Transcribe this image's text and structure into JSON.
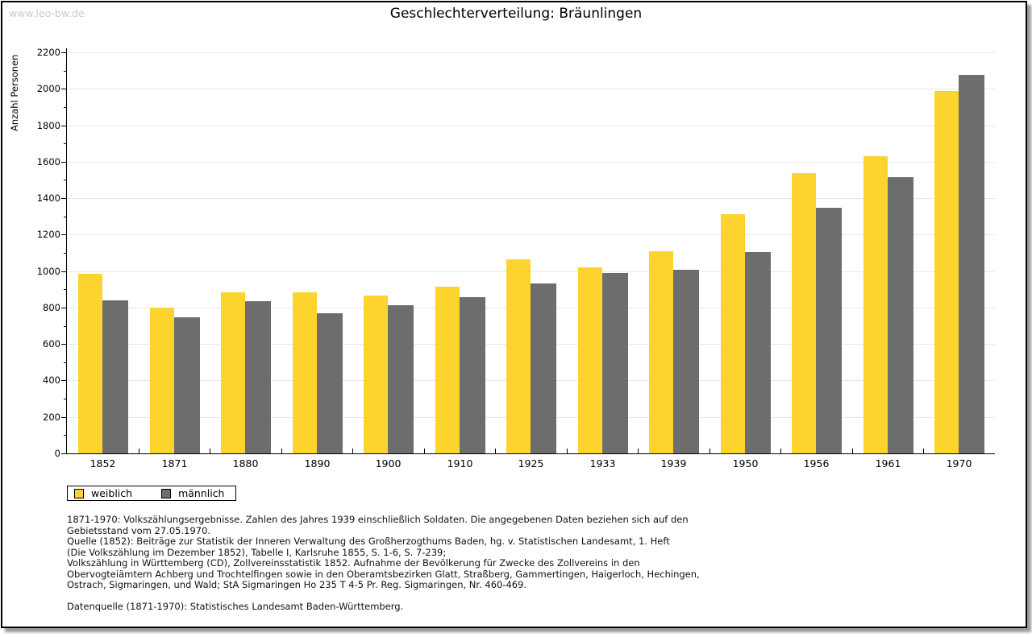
{
  "watermark": "www.leo-bw.de",
  "chart_data": {
    "type": "bar",
    "title": "Geschlechterverteilung: Bräunlingen",
    "xlabel": "",
    "ylabel": "Anzahl Personen",
    "categories": [
      "1852",
      "1871",
      "1880",
      "1890",
      "1900",
      "1910",
      "1925",
      "1933",
      "1939",
      "1950",
      "1956",
      "1961",
      "1970"
    ],
    "series": [
      {
        "name": "weiblich",
        "color": "#FDD32D",
        "values": [
          985,
          800,
          885,
          882,
          867,
          913,
          1065,
          1022,
          1110,
          1314,
          1539,
          1629,
          1986
        ]
      },
      {
        "name": "männlich",
        "color": "#6D6D6D",
        "values": [
          840,
          745,
          833,
          770,
          815,
          855,
          930,
          991,
          1009,
          1105,
          1349,
          1515,
          2077
        ]
      }
    ],
    "ylim": [
      0,
      2200
    ],
    "ytick_step": 200,
    "minor_tick_step": 100,
    "grid": true,
    "legend_position": "bottom-left"
  },
  "footer": {
    "lines": [
      "1871-1970: Volkszählungsergebnisse. Zahlen des Jahres 1939 einschließlich Soldaten. Die angegebenen Daten beziehen sich auf den",
      "Gebietsstand vom 27.05.1970.",
      "Quelle (1852): Beiträge zur Statistik der Inneren Verwaltung des Großherzogthums Baden, hg. v. Statistischen Landesamt, 1. Heft",
      "(Die Volkszählung im Dezember 1852), Tabelle I, Karlsruhe 1855, S. 1-6, S. 7-239;",
      "Volkszählung in Württemberg (CD), Zollvereinsstatistik 1852. Aufnahme der Bevölkerung für Zwecke des Zollvereins in den",
      "Obervogteiämtern Achberg und Trochtelfingen sowie in den Oberamtsbezirken Glatt, Straßberg, Gammertingen, Haigerloch, Hechingen,",
      "Ostrach, Sigmaringen, und Wald; StA Sigmaringen Ho 235 T 4-5 Pr. Reg. Sigmaringen, Nr. 460-469."
    ],
    "datasource": "Datenquelle (1871-1970): Statistisches Landesamt Baden-Württemberg."
  },
  "colors": {
    "grid": "#E8E8E8",
    "axis": "#000000",
    "watermark": "#C9C9C9"
  }
}
